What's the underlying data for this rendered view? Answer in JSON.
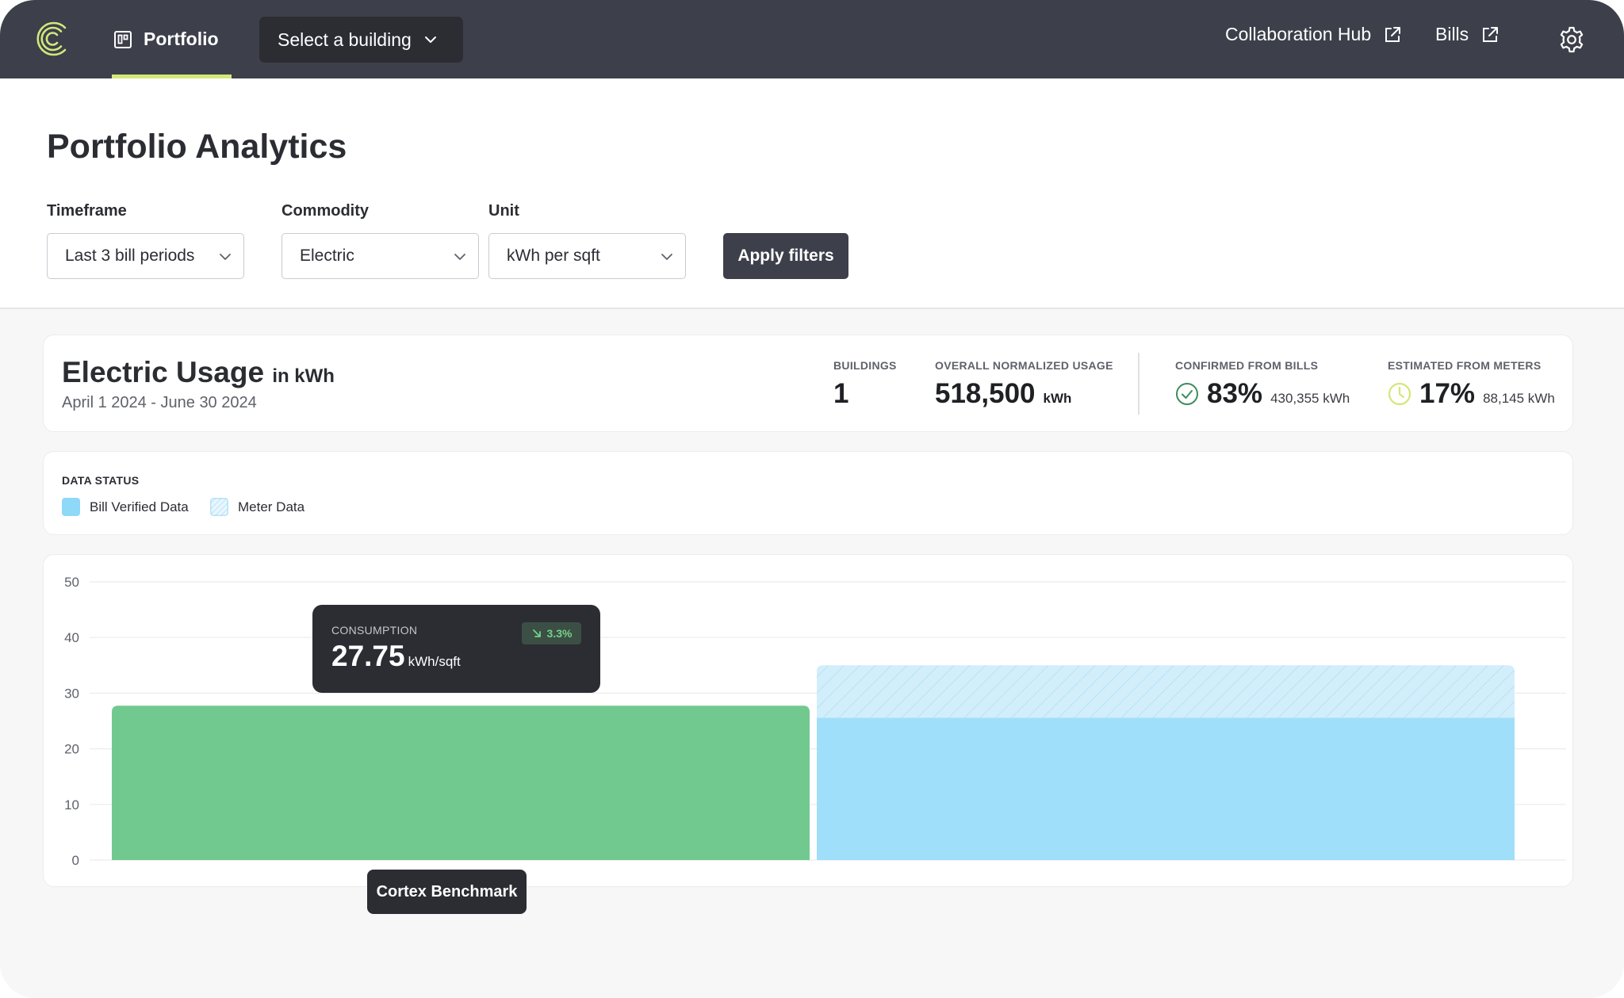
{
  "nav": {
    "portfolio_label": "Portfolio",
    "building_select_label": "Select a building",
    "collab_hub_label": "Collaboration Hub",
    "bills_label": "Bills",
    "icons": [
      "logo-icon",
      "portfolio-icon",
      "chevron-down-icon",
      "external-link-icon",
      "gear-icon"
    ]
  },
  "page": {
    "title": "Portfolio Analytics"
  },
  "filters": {
    "timeframe_label": "Timeframe",
    "timeframe_value": "Last 3 bill periods",
    "commodity_label": "Commodity",
    "commodity_value": "Electric",
    "unit_label": "Unit",
    "unit_value": "kWh per sqft",
    "apply_label": "Apply filters"
  },
  "summary": {
    "title": "Electric Usage",
    "title_unit": "in kWh",
    "dates": "April 1 2024 - June 30 2024",
    "buildings_label": "BUILDINGS",
    "buildings_value": "1",
    "overall_label": "OVERALL NORMALIZED USAGE",
    "overall_value": "518,500",
    "overall_unit": "kWh",
    "confirmed_label": "CONFIRMED FROM BILLS",
    "confirmed_pct": "83%",
    "confirmed_kwh": "430,355 kWh",
    "estimated_label": "ESTIMATED FROM METERS",
    "estimated_pct": "17%",
    "estimated_kwh": "88,145 kWh"
  },
  "data_status": {
    "title": "DATA STATUS",
    "bill_verified_label": "Bill Verified Data",
    "meter_data_label": "Meter Data"
  },
  "colors": {
    "nav_bg": "#3d404b",
    "accent": "#d4e77a",
    "benchmark_bar": "#72c98f",
    "bill_verified": "#a0dff9",
    "meter_data": "#d3eefb",
    "tooltip_bg": "#2b2d33"
  },
  "chart_data": {
    "type": "bar",
    "yticks": [
      0,
      10,
      20,
      30,
      40,
      50
    ],
    "ylim": [
      0,
      50
    ],
    "bars": [
      {
        "name": "Cortex Benchmark",
        "value": 27.75
      },
      {
        "name": "",
        "bill_verified": 25.6,
        "meter_data": 9.4
      }
    ],
    "tooltip": {
      "label": "CONSUMPTION",
      "value": "27.75",
      "unit": "kWh/sqft",
      "change": "3.3%"
    },
    "benchmark_label": "Cortex Benchmark"
  }
}
